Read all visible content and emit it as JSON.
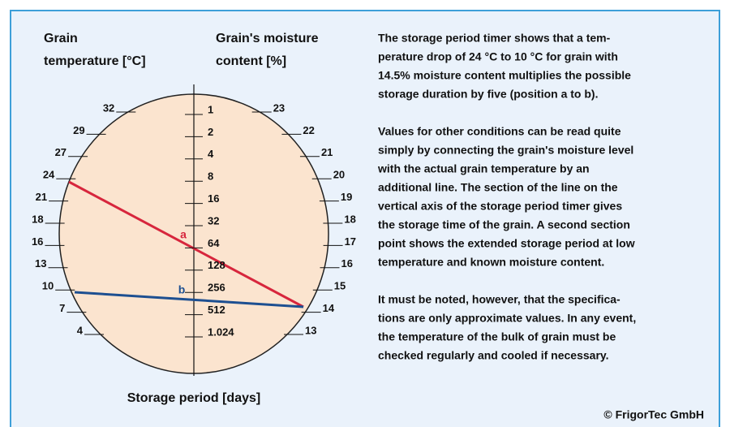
{
  "headers": {
    "temperature": [
      "Grain",
      "temperature [°C]"
    ],
    "moisture": [
      "Grain's moisture",
      "content [%]"
    ]
  },
  "axis_title": "Storage period [days]",
  "temperature_scale": [
    "32",
    "29",
    "27",
    "24",
    "21",
    "18",
    "16",
    "13",
    "10",
    "7",
    "4"
  ],
  "storage_scale": [
    "1",
    "2",
    "4",
    "8",
    "16",
    "32",
    "64",
    "128",
    "256",
    "512",
    "1.024"
  ],
  "moisture_scale": [
    "23",
    "22",
    "21",
    "20",
    "19",
    "18",
    "17",
    "16",
    "15",
    "14",
    "13"
  ],
  "markers": {
    "a": "a",
    "b": "b"
  },
  "paragraphs": [
    [
      "The storage period timer shows that a tem-",
      "perature drop of 24 °C to 10 °C for grain with",
      "14.5% moisture content multiplies the possible",
      "storage duration by five (position a to b)."
    ],
    [
      "Values for other conditions can be read quite",
      "simply by connecting the grain's moisture level",
      "with the actual grain temperature by an",
      "additional line. The section of the line on the",
      "vertical axis of the storage period timer gives",
      "the storage time of the grain. A second section",
      "point shows the extended storage period at low",
      "temperature and known moisture content."
    ],
    [
      "It must be noted, however, that the specifica-",
      "tions are only approximate values. In any event,",
      "the temperature of the bulk of grain must be",
      "checked regularly and cooled if necessary."
    ]
  ],
  "copyright": "© FrigorTec GmbH"
}
